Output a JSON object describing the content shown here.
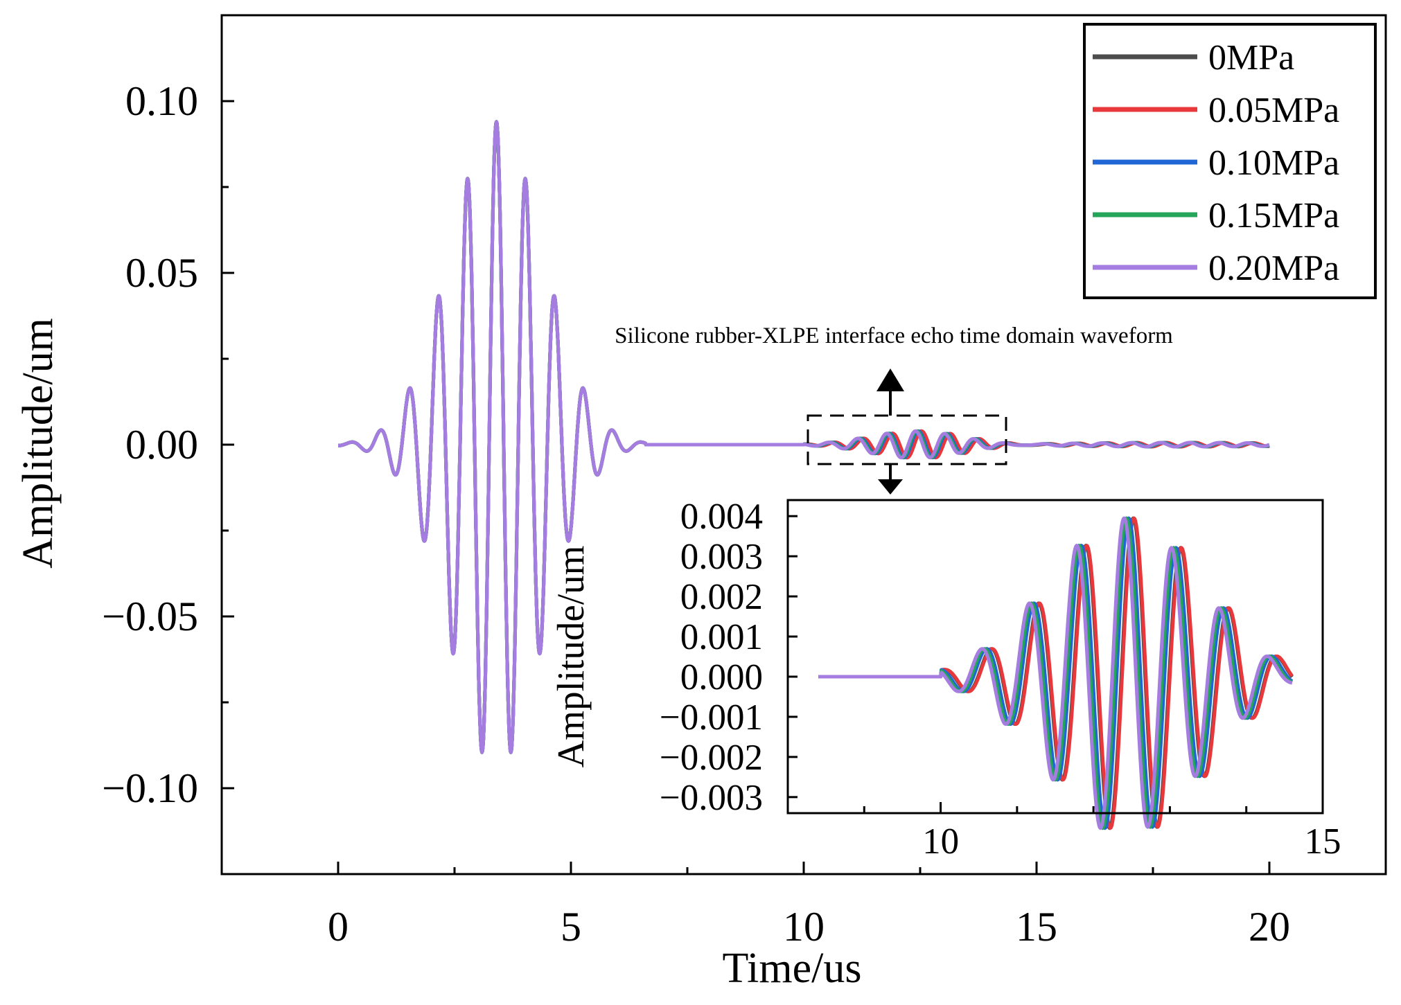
{
  "chart_data": [
    {
      "type": "line",
      "role": "main",
      "title": "",
      "xlabel": "Time/us",
      "ylabel": "Amplitude/um",
      "xlim": [
        -2.5,
        22.5
      ],
      "ylim": [
        -0.125,
        0.125
      ],
      "xticks": [
        0,
        5,
        10,
        15,
        20
      ],
      "xtick_labels": [
        "0",
        "5",
        "10",
        "15",
        "20"
      ],
      "yticks": [
        -0.1,
        -0.05,
        0.0,
        0.05,
        0.1
      ],
      "ytick_labels": [
        "−0.10",
        "−0.05",
        "0.00",
        "0.05",
        "0.10"
      ],
      "grid": false,
      "legend_position": "top-right",
      "series": [
        {
          "name": "0MPa",
          "color": "#4d4d4d"
        },
        {
          "name": "0.05MPa",
          "color": "#e8383b"
        },
        {
          "name": "0.10MPa",
          "color": "#2166d6"
        },
        {
          "name": "0.15MPa",
          "color": "#25a55a"
        },
        {
          "name": "0.20MPa",
          "color": "#a57de0"
        }
      ],
      "waveforms": {
        "transmitted_pulse": {
          "center_us": 3.4,
          "peak_amplitude": 0.094,
          "frequency_mhz": 1.6,
          "envelope_sigma_us": 1.0,
          "time_range_us": [
            0,
            6.6
          ]
        },
        "interface_echo": {
          "center_us": 12.4,
          "peak_amplitude": 0.004,
          "frequency_mhz": 1.6,
          "envelope_sigma_us": 1.0,
          "time_range_us": [
            10,
            20
          ],
          "series_time_shift_us": [
            0.12,
            0.13,
            0.06,
            0.03,
            0.0
          ]
        }
      },
      "annotation": {
        "text": "Silicone rubber-XLPE interface echo time domain waveform",
        "box_x_range_us": [
          10,
          14.2
        ],
        "box_y_range": [
          -0.005,
          0.009
        ]
      }
    },
    {
      "type": "line",
      "role": "inset",
      "xlabel": "",
      "ylabel": "Amplitude/um",
      "xlim": [
        8.0,
        15.0
      ],
      "ylim": [
        -0.0034,
        0.0044
      ],
      "xticks": [
        10,
        15
      ],
      "xtick_labels": [
        "10",
        "15"
      ],
      "xticks_minor": [
        8.0,
        9.0,
        10.0,
        11.0,
        12.0,
        13.0,
        14.0,
        15.0
      ],
      "yticks": [
        -0.003,
        -0.002,
        -0.001,
        0.0,
        0.001,
        0.002,
        0.003,
        0.004
      ],
      "ytick_labels": [
        "−0.003",
        "−0.002",
        "−0.001",
        "0.000",
        "0.001",
        "0.002",
        "0.003",
        "0.004"
      ],
      "time_range_us": [
        8.4,
        14.6
      ],
      "series_names": [
        "0MPa",
        "0.05MPa",
        "0.10MPa",
        "0.15MPa",
        "0.20MPa"
      ]
    }
  ]
}
